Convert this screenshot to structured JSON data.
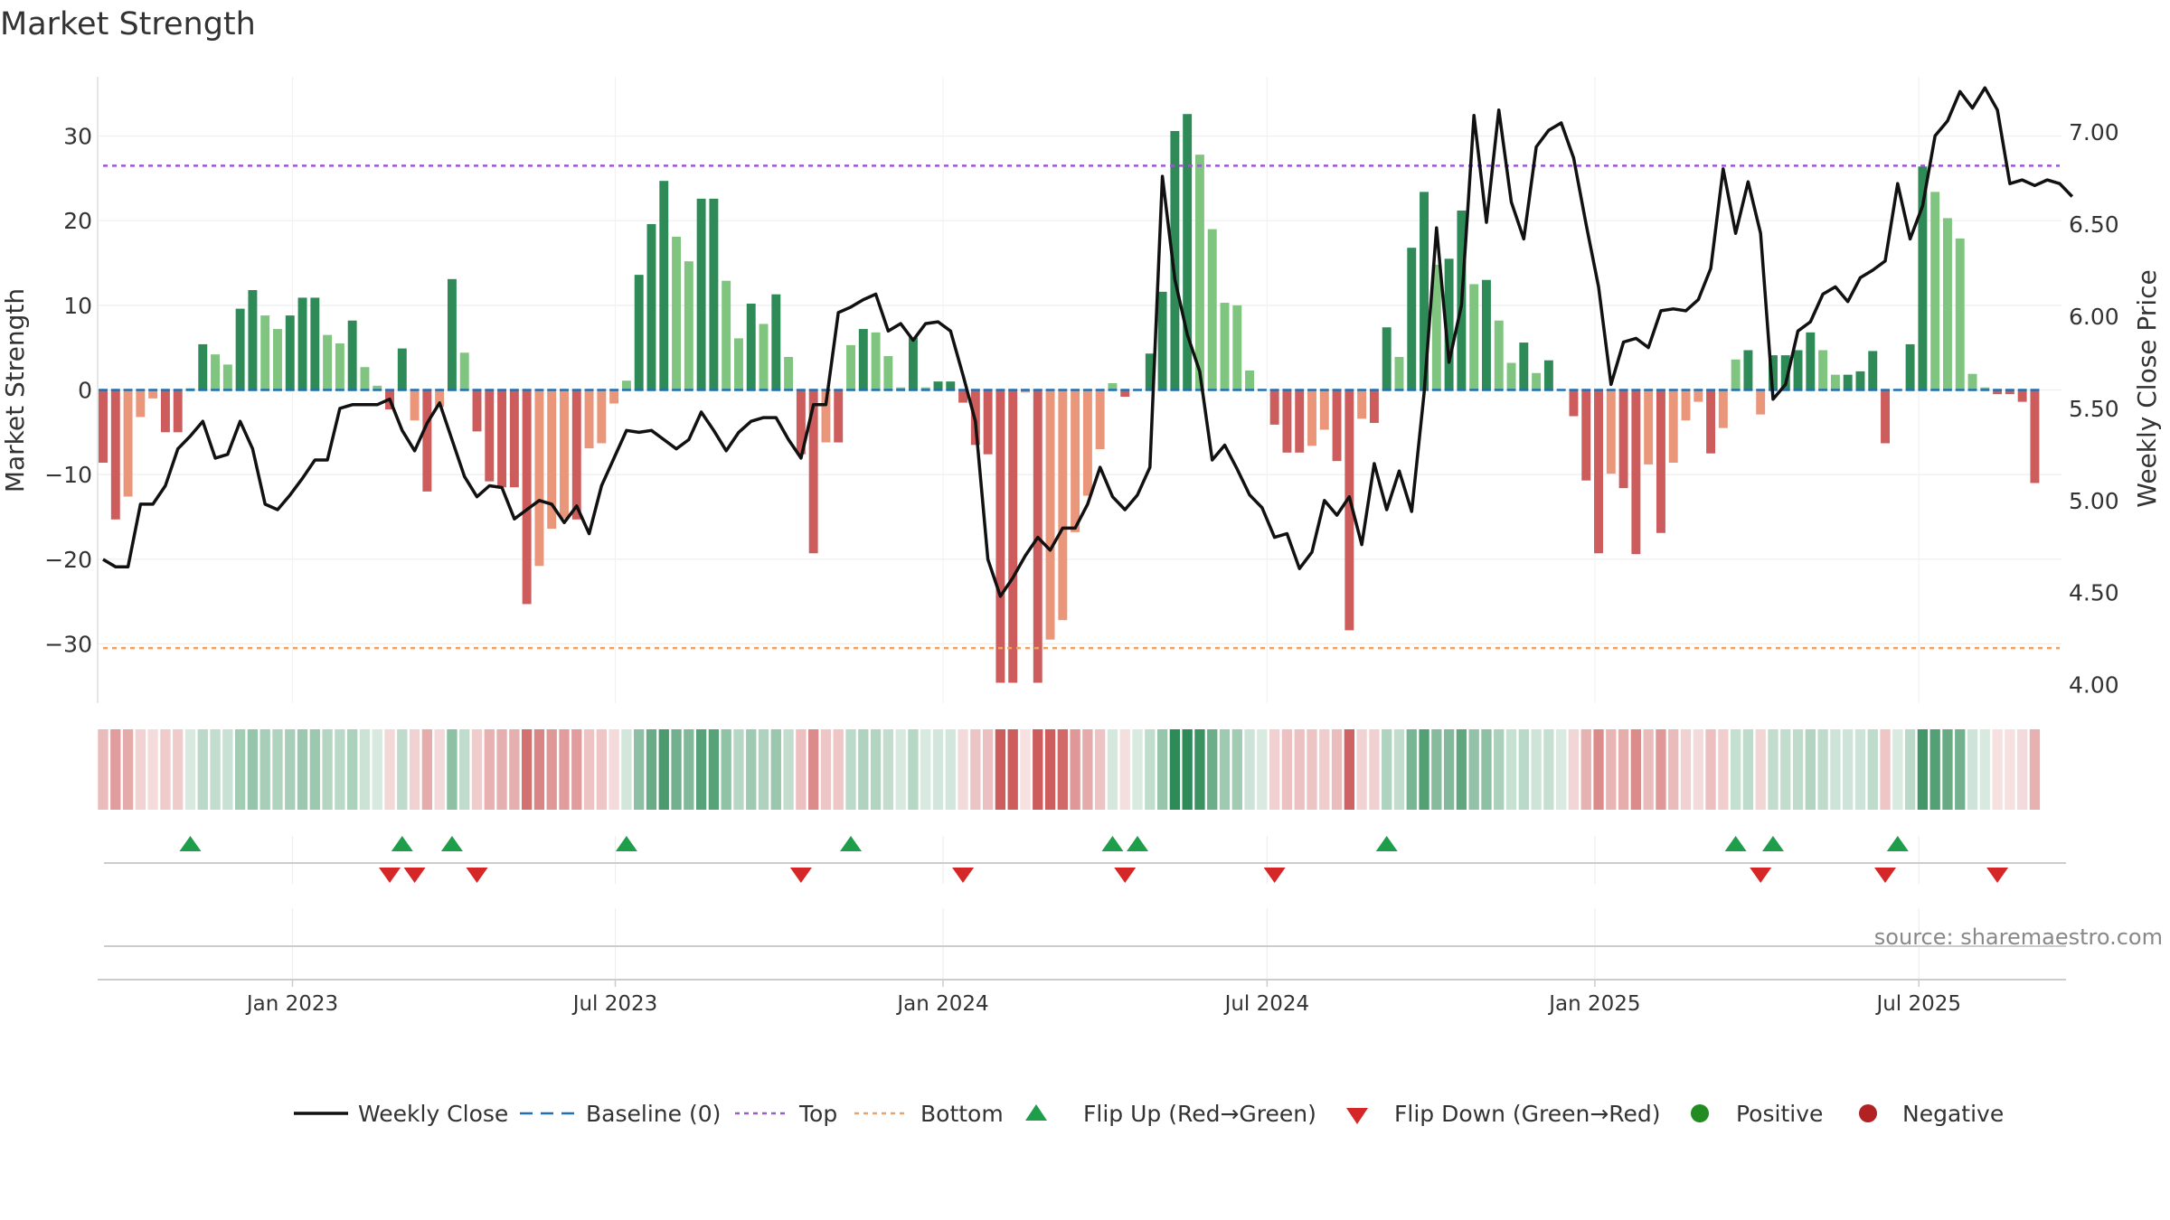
{
  "chart_data": {
    "type": "bar",
    "title": "Market Strength",
    "ylabel": "Market Strength",
    "y2label": "Weekly Close Price",
    "ylim": [
      -37,
      37
    ],
    "y2lim": [
      3.9,
      7.3
    ],
    "yticks": [
      30,
      20,
      10,
      0,
      -10,
      -20,
      -30
    ],
    "y2ticks": [
      "7.00",
      "6.50",
      "6.00",
      "5.50",
      "5.00",
      "4.50",
      "4.00"
    ],
    "top_level": 26.5,
    "bottom_level": -30.5,
    "x_start_week": 0,
    "x_end_week": 157,
    "x_ticks": [
      {
        "label": "Jan 2023",
        "week": 15.2
      },
      {
        "label": "Jul 2023",
        "week": 41.1
      },
      {
        "label": "Jan 2024",
        "week": 67.4
      },
      {
        "label": "Jul 2024",
        "week": 93.4
      },
      {
        "label": "Jan 2025",
        "week": 119.7
      },
      {
        "label": "Jul 2025",
        "week": 145.7
      }
    ],
    "strength": [
      -8.6,
      -15.3,
      -12.6,
      -3.2,
      -1.0,
      -5.0,
      -5.0,
      0.2,
      5.4,
      4.2,
      3.0,
      9.6,
      11.8,
      8.8,
      7.2,
      8.8,
      10.9,
      10.9,
      6.5,
      5.5,
      8.2,
      2.7,
      0.5,
      -2.3,
      4.9,
      -3.6,
      -12.0,
      -2.0,
      13.1,
      4.4,
      -4.9,
      -10.8,
      -11.5,
      -11.5,
      -25.3,
      -20.8,
      -16.4,
      -15.2,
      -15.3,
      -6.9,
      -6.3,
      -1.6,
      1.1,
      13.6,
      19.6,
      24.7,
      18.1,
      15.2,
      22.6,
      22.6,
      12.9,
      6.1,
      10.2,
      7.8,
      11.3,
      3.9,
      -7.6,
      -19.3,
      -6.2,
      -6.2,
      5.3,
      7.2,
      6.8,
      4.0,
      0.3,
      6.2,
      0.3,
      1.0,
      1.0,
      -1.5,
      -6.5,
      -7.6,
      -34.6,
      -34.6,
      -0.3,
      -34.6,
      -29.5,
      -27.2,
      -16.8,
      -12.5,
      -7.0,
      0.8,
      -0.8,
      0.1,
      4.3,
      11.6,
      30.6,
      32.6,
      27.8,
      19.0,
      10.3,
      10.0,
      2.3,
      0.1,
      -4.1,
      -7.4,
      -7.4,
      -6.6,
      -4.7,
      -8.4,
      -28.4,
      -3.4,
      -3.9,
      7.4,
      3.9,
      16.8,
      23.4,
      14.8,
      15.5,
      21.2,
      12.5,
      13.0,
      8.2,
      3.2,
      5.6,
      2.0,
      3.5,
      0.0,
      -3.1,
      -10.7,
      -19.3,
      -9.9,
      -11.6,
      -19.4,
      -8.8,
      -16.9,
      -8.6,
      -3.6,
      -1.4,
      -7.5,
      -4.5,
      3.6,
      4.7,
      -2.9,
      4.1,
      4.1,
      4.7,
      6.8,
      4.7,
      1.8,
      1.8,
      2.2,
      4.6,
      -6.3,
      0.1,
      5.4,
      26.4,
      23.4,
      20.3,
      17.9,
      1.9,
      0.3,
      -0.5,
      -0.5,
      -1.4,
      -11.0
    ],
    "close": [
      4.68,
      4.64,
      4.64,
      4.98,
      4.98,
      5.08,
      5.28,
      5.35,
      5.43,
      5.23,
      5.25,
      5.43,
      5.28,
      4.98,
      4.95,
      5.03,
      5.12,
      5.22,
      5.22,
      5.5,
      5.52,
      5.52,
      5.52,
      5.55,
      5.38,
      5.27,
      5.42,
      5.53,
      5.33,
      5.13,
      5.02,
      5.08,
      5.07,
      4.9,
      4.95,
      5.0,
      4.98,
      4.88,
      4.97,
      4.82,
      5.08,
      5.23,
      5.38,
      5.37,
      5.38,
      5.33,
      5.28,
      5.33,
      5.48,
      5.38,
      5.27,
      5.37,
      5.43,
      5.45,
      5.45,
      5.33,
      5.23,
      5.52,
      5.52,
      6.02,
      6.05,
      6.09,
      6.12,
      5.92,
      5.96,
      5.87,
      5.96,
      5.97,
      5.92,
      5.68,
      5.43,
      4.68,
      4.48,
      4.58,
      4.7,
      4.8,
      4.73,
      4.85,
      4.85,
      4.98,
      5.18,
      5.02,
      4.95,
      5.03,
      5.18,
      6.76,
      6.2,
      5.9,
      5.7,
      5.22,
      5.3,
      5.17,
      5.03,
      4.96,
      4.8,
      4.82,
      4.63,
      4.72,
      5.0,
      4.92,
      5.02,
      4.76,
      5.2,
      4.95,
      5.16,
      4.94,
      5.58,
      6.48,
      5.75,
      6.06,
      7.09,
      6.51,
      7.12,
      6.62,
      6.42,
      6.92,
      7.01,
      7.05,
      6.86,
      6.5,
      6.16,
      5.63,
      5.86,
      5.88,
      5.83,
      6.03,
      6.04,
      6.03,
      6.09,
      6.26,
      6.8,
      6.45,
      6.73,
      6.45,
      5.55,
      5.63,
      5.92,
      5.97,
      6.12,
      6.16,
      6.08,
      6.21,
      6.25,
      6.3,
      6.72,
      6.42,
      6.6,
      6.98,
      7.06,
      7.22,
      7.13,
      7.24,
      7.12,
      6.72,
      6.74,
      6.71,
      6.74,
      6.72,
      6.65
    ]
  },
  "legend": [
    {
      "label": "Weekly Close"
    },
    {
      "label": "Baseline (0)"
    },
    {
      "label": "Top"
    },
    {
      "label": "Bottom"
    },
    {
      "label": "Flip Up (Red→Green)"
    },
    {
      "label": "Flip Down (Green→Red)"
    },
    {
      "label": "Positive"
    },
    {
      "label": "Negative"
    }
  ],
  "source": "source: sharemaestro.com",
  "colors": {
    "pos_strong": "#2e8b57",
    "pos_weak": "#7fc47f",
    "neg_strong": "#cd5c5c",
    "neg_weak": "#e9967a",
    "line": "#111111",
    "baseline": "#1f6fb2",
    "top": "#9b59d0",
    "bottom": "#f0a060",
    "flip_up": "#1e9e4a",
    "flip_down": "#d62728",
    "positive": "#228b22",
    "negative": "#b22222"
  }
}
